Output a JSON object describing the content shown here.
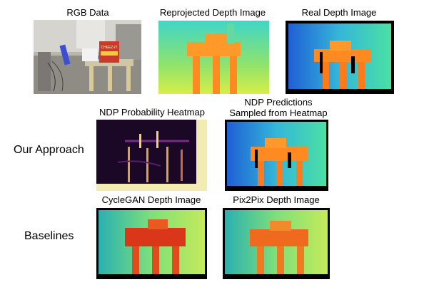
{
  "figure": {
    "top_row": {
      "rgb": {
        "caption": "RGB Data",
        "box_text": "CHEEZ-IT"
      },
      "reprojected": {
        "caption": "Reprojected Depth Image"
      },
      "real": {
        "caption": "Real Depth Image"
      }
    },
    "our_approach": {
      "label": "Our Approach",
      "heatmap": {
        "caption": "NDP Probability Heatmap"
      },
      "predictions": {
        "caption_line1": "NDP Predictions",
        "caption_line2": "Sampled from Heatmap"
      }
    },
    "baselines": {
      "label": "Baselines",
      "cyclegan": {
        "caption": "CycleGAN Depth Image"
      },
      "pix2pix": {
        "caption": "Pix2Pix Depth Image"
      }
    }
  },
  "colors": {
    "depth_far": "#1f5fd6",
    "depth_mid": "#3fd6c8",
    "depth_near": "#ff7a1a",
    "depth_near_dark": "#d9361a",
    "heatmap_bg": "#1a0826",
    "heatmap_hot": "#f5d36a",
    "background": "#ffffff"
  }
}
